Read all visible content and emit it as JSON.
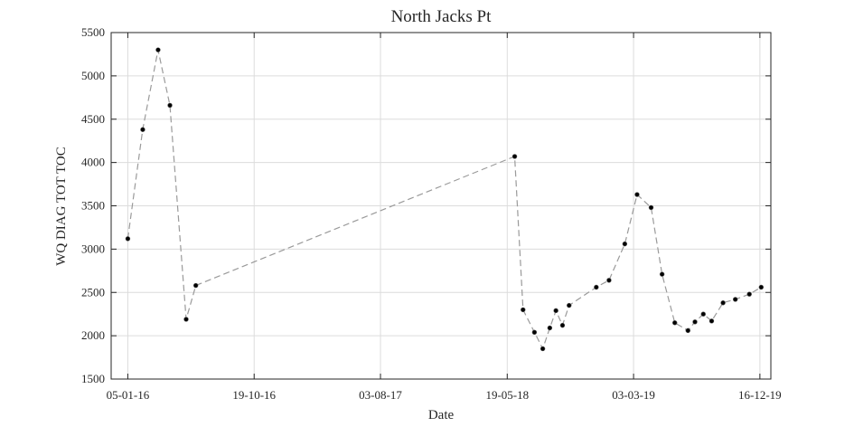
{
  "chart_data": {
    "type": "line",
    "title": "North Jacks Pt",
    "xlabel": "Date",
    "ylabel": "WQ DIAG TOT TOC",
    "xlim": [
      "2015-11-28",
      "2020-01-10"
    ],
    "ylim": [
      1500,
      5500
    ],
    "x_ticks": [
      {
        "date": "2016-01-05",
        "label": "05-01-16"
      },
      {
        "date": "2016-10-19",
        "label": "19-10-16"
      },
      {
        "date": "2017-08-03",
        "label": "03-08-17"
      },
      {
        "date": "2018-05-19",
        "label": "19-05-18"
      },
      {
        "date": "2019-03-03",
        "label": "03-03-19"
      },
      {
        "date": "2019-12-16",
        "label": "16-12-19"
      }
    ],
    "y_ticks": [
      1500,
      2000,
      2500,
      3000,
      3500,
      4000,
      4500,
      5000,
      5500
    ],
    "grid": true,
    "series": [
      {
        "marker_color": "#000000",
        "line_color": "#9a9a9a",
        "line_style": "dashed",
        "points": [
          {
            "x": "2016-01-05",
            "y": 3120
          },
          {
            "x": "2016-02-08",
            "y": 4380
          },
          {
            "x": "2016-03-14",
            "y": 5300
          },
          {
            "x": "2016-04-10",
            "y": 4660
          },
          {
            "x": "2016-05-17",
            "y": 2190
          },
          {
            "x": "2016-06-08",
            "y": 2580
          },
          {
            "x": "2018-06-05",
            "y": 4070
          },
          {
            "x": "2018-06-24",
            "y": 2300
          },
          {
            "x": "2018-07-20",
            "y": 2040
          },
          {
            "x": "2018-08-08",
            "y": 1850
          },
          {
            "x": "2018-08-24",
            "y": 2090
          },
          {
            "x": "2018-09-07",
            "y": 2290
          },
          {
            "x": "2018-09-22",
            "y": 2120
          },
          {
            "x": "2018-10-07",
            "y": 2350
          },
          {
            "x": "2018-12-08",
            "y": 2560
          },
          {
            "x": "2019-01-06",
            "y": 2640
          },
          {
            "x": "2019-02-11",
            "y": 3060
          },
          {
            "x": "2019-03-11",
            "y": 3630
          },
          {
            "x": "2019-04-12",
            "y": 3480
          },
          {
            "x": "2019-05-07",
            "y": 2710
          },
          {
            "x": "2019-06-05",
            "y": 2150
          },
          {
            "x": "2019-07-05",
            "y": 2060
          },
          {
            "x": "2019-07-21",
            "y": 2160
          },
          {
            "x": "2019-08-09",
            "y": 2250
          },
          {
            "x": "2019-08-28",
            "y": 2170
          },
          {
            "x": "2019-09-23",
            "y": 2380
          },
          {
            "x": "2019-10-21",
            "y": 2420
          },
          {
            "x": "2019-11-22",
            "y": 2480
          },
          {
            "x": "2019-12-19",
            "y": 2560
          }
        ]
      }
    ]
  }
}
